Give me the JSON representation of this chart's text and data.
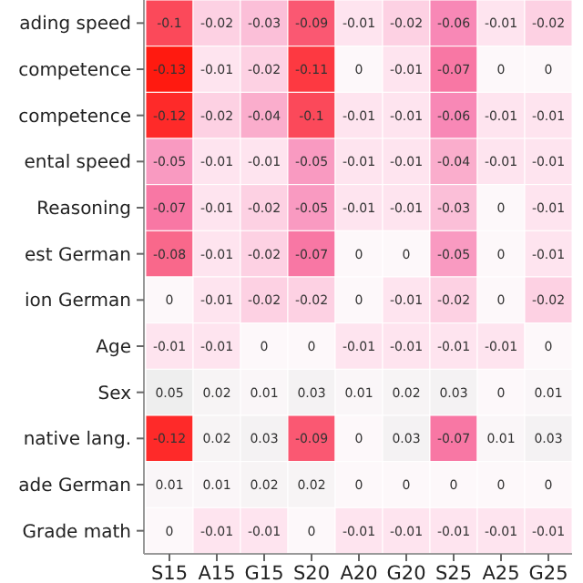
{
  "chart_data": {
    "type": "heatmap",
    "data_labels": true,
    "categories": [
      "S15",
      "A15",
      "G15",
      "S20",
      "A20",
      "G20",
      "S25",
      "A25",
      "G25"
    ],
    "y_categories": [
      "ading speed",
      "competence",
      "competence",
      "ental speed",
      "Reasoning",
      "est German",
      "ion German",
      "Age",
      "Sex",
      "native lang.",
      "ade German",
      "Grade math"
    ],
    "cells": [
      [
        -0.1,
        -0.02,
        -0.03,
        -0.09,
        -0.01,
        -0.02,
        -0.06,
        -0.01,
        -0.02
      ],
      [
        -0.13,
        -0.01,
        -0.02,
        -0.11,
        0,
        -0.01,
        -0.07,
        0,
        0
      ],
      [
        -0.12,
        -0.02,
        -0.04,
        -0.1,
        -0.01,
        -0.01,
        -0.06,
        -0.01,
        -0.01
      ],
      [
        -0.05,
        -0.01,
        -0.01,
        -0.05,
        -0.01,
        -0.01,
        -0.04,
        -0.01,
        -0.01
      ],
      [
        -0.07,
        -0.01,
        -0.02,
        -0.05,
        -0.01,
        -0.01,
        -0.03,
        0,
        -0.01
      ],
      [
        -0.08,
        -0.01,
        -0.02,
        -0.07,
        0,
        0,
        -0.05,
        0,
        -0.01
      ],
      [
        0,
        -0.01,
        -0.02,
        -0.02,
        0,
        -0.01,
        -0.02,
        0,
        -0.02
      ],
      [
        -0.01,
        -0.01,
        0,
        0,
        -0.01,
        -0.01,
        -0.01,
        -0.01,
        0
      ],
      [
        0.05,
        0.02,
        0.01,
        0.03,
        0.01,
        0.02,
        0.03,
        0,
        0.01
      ],
      [
        -0.12,
        0.02,
        0.03,
        -0.09,
        0,
        0.03,
        -0.07,
        0.01,
        0.03
      ],
      [
        0.01,
        0.01,
        0.02,
        0.02,
        0,
        0,
        0,
        0,
        0
      ],
      [
        0,
        -0.01,
        -0.01,
        0,
        -0.01,
        -0.01,
        -0.01,
        -0.01,
        -0.01
      ]
    ]
  }
}
